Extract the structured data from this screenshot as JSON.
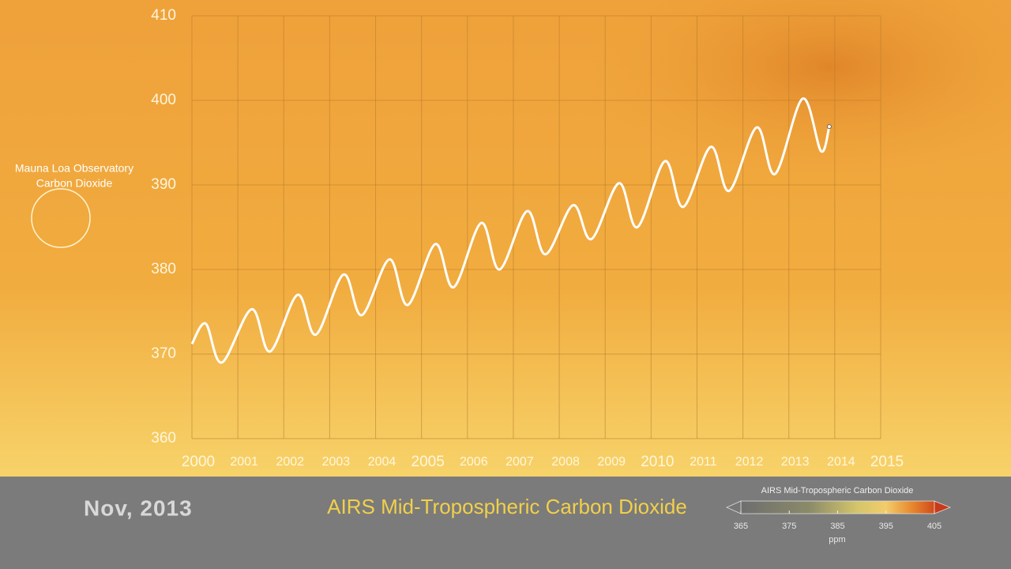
{
  "chart_data": {
    "type": "line",
    "x": [
      2000.0,
      2000.3,
      2000.65,
      2001.3,
      2001.7,
      2002.3,
      2002.7,
      2003.3,
      2003.7,
      2004.3,
      2004.7,
      2005.3,
      2005.7,
      2006.3,
      2006.7,
      2007.3,
      2007.7,
      2008.3,
      2008.7,
      2009.3,
      2009.7,
      2010.3,
      2010.7,
      2011.3,
      2011.7,
      2012.3,
      2012.7,
      2013.3,
      2013.7,
      2013.88
    ],
    "values": [
      371.2,
      373.6,
      369.0,
      375.3,
      370.3,
      377.0,
      372.3,
      379.4,
      374.6,
      381.2,
      375.8,
      383.0,
      377.9,
      385.5,
      380.0,
      386.9,
      381.8,
      387.6,
      383.6,
      390.2,
      385.0,
      392.8,
      387.4,
      394.5,
      389.3,
      396.8,
      391.3,
      400.2,
      394.0,
      396.9
    ],
    "color": "#ffffff",
    "xlim": [
      2000,
      2015
    ],
    "xticks": [
      2000,
      2001,
      2002,
      2003,
      2004,
      2005,
      2006,
      2007,
      2008,
      2009,
      2010,
      2011,
      2012,
      2013,
      2014,
      2015
    ],
    "ylim": [
      360,
      410
    ],
    "yticks": [
      360,
      370,
      380,
      390,
      400,
      410
    ],
    "grid": true,
    "annotation": [
      "Mauna Loa Observatory",
      "Carbon Dioxide"
    ]
  },
  "date_label": "Nov, 2013",
  "banner_title": "AIRS Mid-Tropospheric Carbon Dioxide",
  "colorbar": {
    "title": "AIRS Mid-Tropospheric Carbon Dioxide",
    "lim": [
      365,
      405
    ],
    "ticks": [
      365,
      375,
      385,
      395,
      405
    ],
    "unit": "ppm"
  }
}
